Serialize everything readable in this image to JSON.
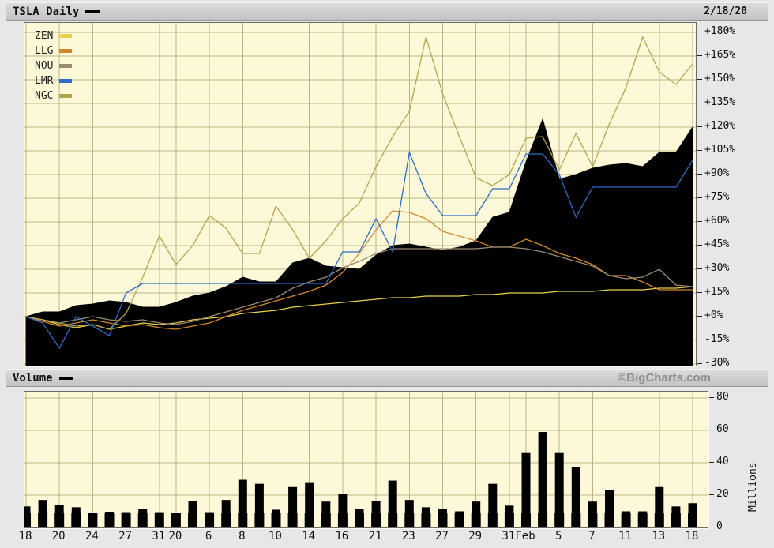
{
  "header": {
    "title": "TSLA Daily",
    "date": "2/18/20",
    "title_swatch_color": "#000000"
  },
  "volume_strip": {
    "label": "Volume",
    "swatch_color": "#000000",
    "watermark": "©BigCharts.com"
  },
  "ui_colors": {
    "plot_background": "#fdf9d8",
    "grid": "#b9b886",
    "axis_text": "#111111"
  },
  "chart_data": [
    {
      "type": "area",
      "title": "TSLA Daily vs comparison tickers, cumulative % change",
      "x": [
        "12/18",
        "12/19",
        "12/20",
        "12/23",
        "12/24",
        "12/26",
        "12/27",
        "12/30",
        "12/31",
        "1/2",
        "1/3",
        "1/6",
        "1/7",
        "1/8",
        "1/9",
        "1/10",
        "1/13",
        "1/14",
        "1/15",
        "1/16",
        "1/17",
        "1/21",
        "1/22",
        "1/23",
        "1/24",
        "1/27",
        "1/28",
        "1/29",
        "1/30",
        "1/31",
        "2/3",
        "2/4",
        "2/5",
        "2/6",
        "2/7",
        "2/10",
        "2/11",
        "2/12",
        "2/13",
        "2/14",
        "2/18"
      ],
      "x_tick_indices": [
        0,
        2,
        4,
        6,
        8,
        9,
        11,
        13,
        15,
        17,
        19,
        21,
        23,
        25,
        27,
        29,
        30,
        32,
        34,
        36,
        38,
        40
      ],
      "x_tick_labels": [
        "18",
        "20",
        "24",
        "27",
        "31",
        "20",
        "6",
        "8",
        "10",
        "14",
        "16",
        "21",
        "23",
        "27",
        "29",
        "31",
        "Feb",
        "5",
        "7",
        "11",
        "13",
        "18"
      ],
      "ylim": [
        -30,
        180
      ],
      "ytick_step": 15,
      "ytick_labels": [
        "+180%",
        "+165%",
        "+150%",
        "+135%",
        "+120%",
        "+105%",
        "+90%",
        "+75%",
        "+60%",
        "+45%",
        "+30%",
        "+15%",
        "+0%",
        "-15%",
        "-30%"
      ],
      "grid": true,
      "legend_position": "top-left",
      "legend_order": [
        "ZEN",
        "LLG",
        "NOU",
        "LMR",
        "NGC"
      ],
      "series": [
        {
          "name": "TSLA",
          "style": "area",
          "color": "#000000",
          "values": [
            0,
            3,
            3,
            7,
            8,
            10,
            9,
            6,
            6,
            9,
            13,
            15,
            19,
            25,
            22,
            22,
            34,
            37,
            32,
            31,
            30,
            39,
            45,
            46,
            44,
            42,
            44,
            48,
            63,
            66,
            98,
            125,
            87,
            90,
            94,
            96,
            97,
            95,
            104,
            104,
            120
          ]
        },
        {
          "name": "ZEN",
          "style": "line",
          "color": "#e6d24c",
          "values": [
            0,
            -2,
            -5,
            -7,
            -5,
            -8,
            -6,
            -4,
            -5,
            -4,
            -2,
            -1,
            0,
            2,
            3,
            4,
            6,
            7,
            8,
            9,
            10,
            11,
            12,
            12,
            13,
            13,
            13,
            14,
            14,
            15,
            15,
            15,
            16,
            16,
            16,
            17,
            17,
            17,
            18,
            18,
            19
          ]
        },
        {
          "name": "LLG",
          "style": "line",
          "color": "#d2882a",
          "values": [
            0,
            -3,
            -6,
            -4,
            -2,
            -4,
            -6,
            -5,
            -7,
            -8,
            -6,
            -4,
            0,
            4,
            7,
            10,
            13,
            16,
            20,
            28,
            40,
            55,
            67,
            66,
            62,
            54,
            51,
            48,
            44,
            44,
            49,
            45,
            40,
            37,
            33,
            26,
            26,
            22,
            17,
            17,
            17
          ]
        },
        {
          "name": "NOU",
          "style": "line",
          "color": "#9a8a70",
          "values": [
            0,
            -2,
            -4,
            -2,
            0,
            -2,
            -3,
            -2,
            -4,
            -5,
            -3,
            0,
            3,
            6,
            9,
            12,
            18,
            22,
            25,
            31,
            35,
            40,
            43,
            43,
            43,
            43,
            43,
            43,
            44,
            44,
            43,
            41,
            38,
            35,
            32,
            26,
            24,
            25,
            30,
            20,
            19
          ]
        },
        {
          "name": "NGC",
          "style": "line",
          "color": "#b4a44e",
          "values": [
            0,
            -2,
            -4,
            -6,
            -5,
            -8,
            2,
            25,
            51,
            33,
            45,
            64,
            56,
            40,
            40,
            70,
            55,
            37,
            48,
            62,
            72,
            95,
            114,
            130,
            177,
            141,
            114,
            88,
            83,
            90,
            113,
            114,
            93,
            116,
            95,
            122,
            145,
            177,
            155,
            147,
            160
          ]
        },
        {
          "name": "LMR",
          "style": "line",
          "color": "#2f6bc4",
          "values": [
            0,
            -4,
            -20,
            0,
            -6,
            -12,
            15,
            21,
            21,
            21,
            21,
            21,
            21,
            21,
            21,
            21,
            21,
            21,
            21,
            41,
            41,
            62,
            41,
            104,
            78,
            64,
            64,
            64,
            81,
            81,
            103,
            103,
            90,
            63,
            82,
            82,
            82,
            82,
            82,
            82,
            99
          ]
        }
      ]
    },
    {
      "type": "bar",
      "title": "Volume",
      "ylabel": "Millions",
      "ylim": [
        0,
        80
      ],
      "yticks": [
        80,
        60,
        40,
        20,
        0
      ],
      "ytick_labels": [
        "80",
        "60",
        "40",
        "20",
        "0"
      ],
      "bar_color": "#000000",
      "values": [
        13,
        17,
        14,
        12.5,
        7,
        9.5,
        9,
        11.5,
        9,
        8,
        16.5,
        9,
        17,
        29.5,
        27,
        11,
        25,
        27.5,
        16,
        20.5,
        11.5,
        16.5,
        29,
        17,
        12.5,
        11.5,
        10,
        16,
        27,
        13.5,
        46,
        59,
        46,
        37.5,
        16,
        23,
        10,
        10,
        25,
        13,
        15
      ]
    }
  ]
}
